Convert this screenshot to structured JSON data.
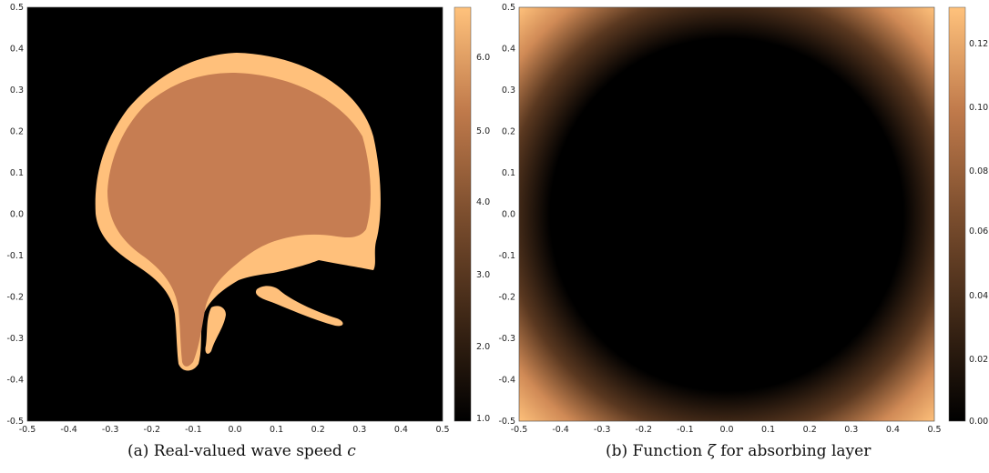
{
  "chart_data": [
    {
      "type": "heatmap",
      "caption_prefix": "(a) Real-valued wave speed",
      "caption_symbol": "c",
      "x_ticks": [
        "-0.5",
        "-0.4",
        "-0.3",
        "-0.2",
        "-0.1",
        "0.0",
        "0.1",
        "0.2",
        "0.3",
        "0.4",
        "0.5"
      ],
      "y_ticks": [
        "0.5",
        "0.4",
        "0.3",
        "0.2",
        "0.1",
        "0.0",
        "-0.1",
        "-0.2",
        "-0.3",
        "-0.4",
        "-0.5"
      ],
      "xlim": [
        -0.5,
        0.5
      ],
      "ylim": [
        -0.5,
        0.5
      ],
      "colorbar": {
        "min": 0.6,
        "max": 6.9,
        "ticks": [
          "6.0",
          "5.0",
          "4.0",
          "3.0",
          "2.0",
          "1.0"
        ],
        "tick_values": [
          6.0,
          5.0,
          4.0,
          3.0,
          2.0,
          1.0
        ],
        "colormap": "copper"
      },
      "regions": [
        {
          "name": "background",
          "value": 0.6
        },
        {
          "name": "skull",
          "value": 6.9
        },
        {
          "name": "brain",
          "value": 4.3
        }
      ]
    },
    {
      "type": "heatmap",
      "caption_prefix": "(b) Function",
      "caption_symbol": "ζ",
      "caption_suffix": "for absorbing layer",
      "x_ticks": [
        "-0.5",
        "-0.4",
        "-0.3",
        "-0.2",
        "-0.1",
        "0.0",
        "0.1",
        "0.2",
        "0.3",
        "0.4",
        "0.5"
      ],
      "y_ticks": [
        "0.5",
        "0.4",
        "0.3",
        "0.2",
        "0.1",
        "0.0",
        "-0.1",
        "-0.2",
        "-0.3",
        "-0.4",
        "-0.5"
      ],
      "xlim": [
        -0.5,
        0.5
      ],
      "ylim": [
        -0.5,
        0.5
      ],
      "colorbar": {
        "min": 0.0,
        "max": 0.13,
        "ticks": [
          "0.12",
          "0.10",
          "0.08",
          "0.06",
          "0.04",
          "0.02",
          "0.00"
        ],
        "tick_values": [
          0.12,
          0.1,
          0.08,
          0.06,
          0.04,
          0.02,
          0.0
        ],
        "colormap": "copper"
      },
      "radial_zero_radius": 0.43,
      "corner_value": 0.13,
      "overlay": "skull contours (white)"
    }
  ],
  "colors": {
    "copper_top": "#FFC27C",
    "skull": "#FFC07B",
    "brain": "#C67D52",
    "background": "#000000",
    "contour": "#FFFFFF"
  }
}
